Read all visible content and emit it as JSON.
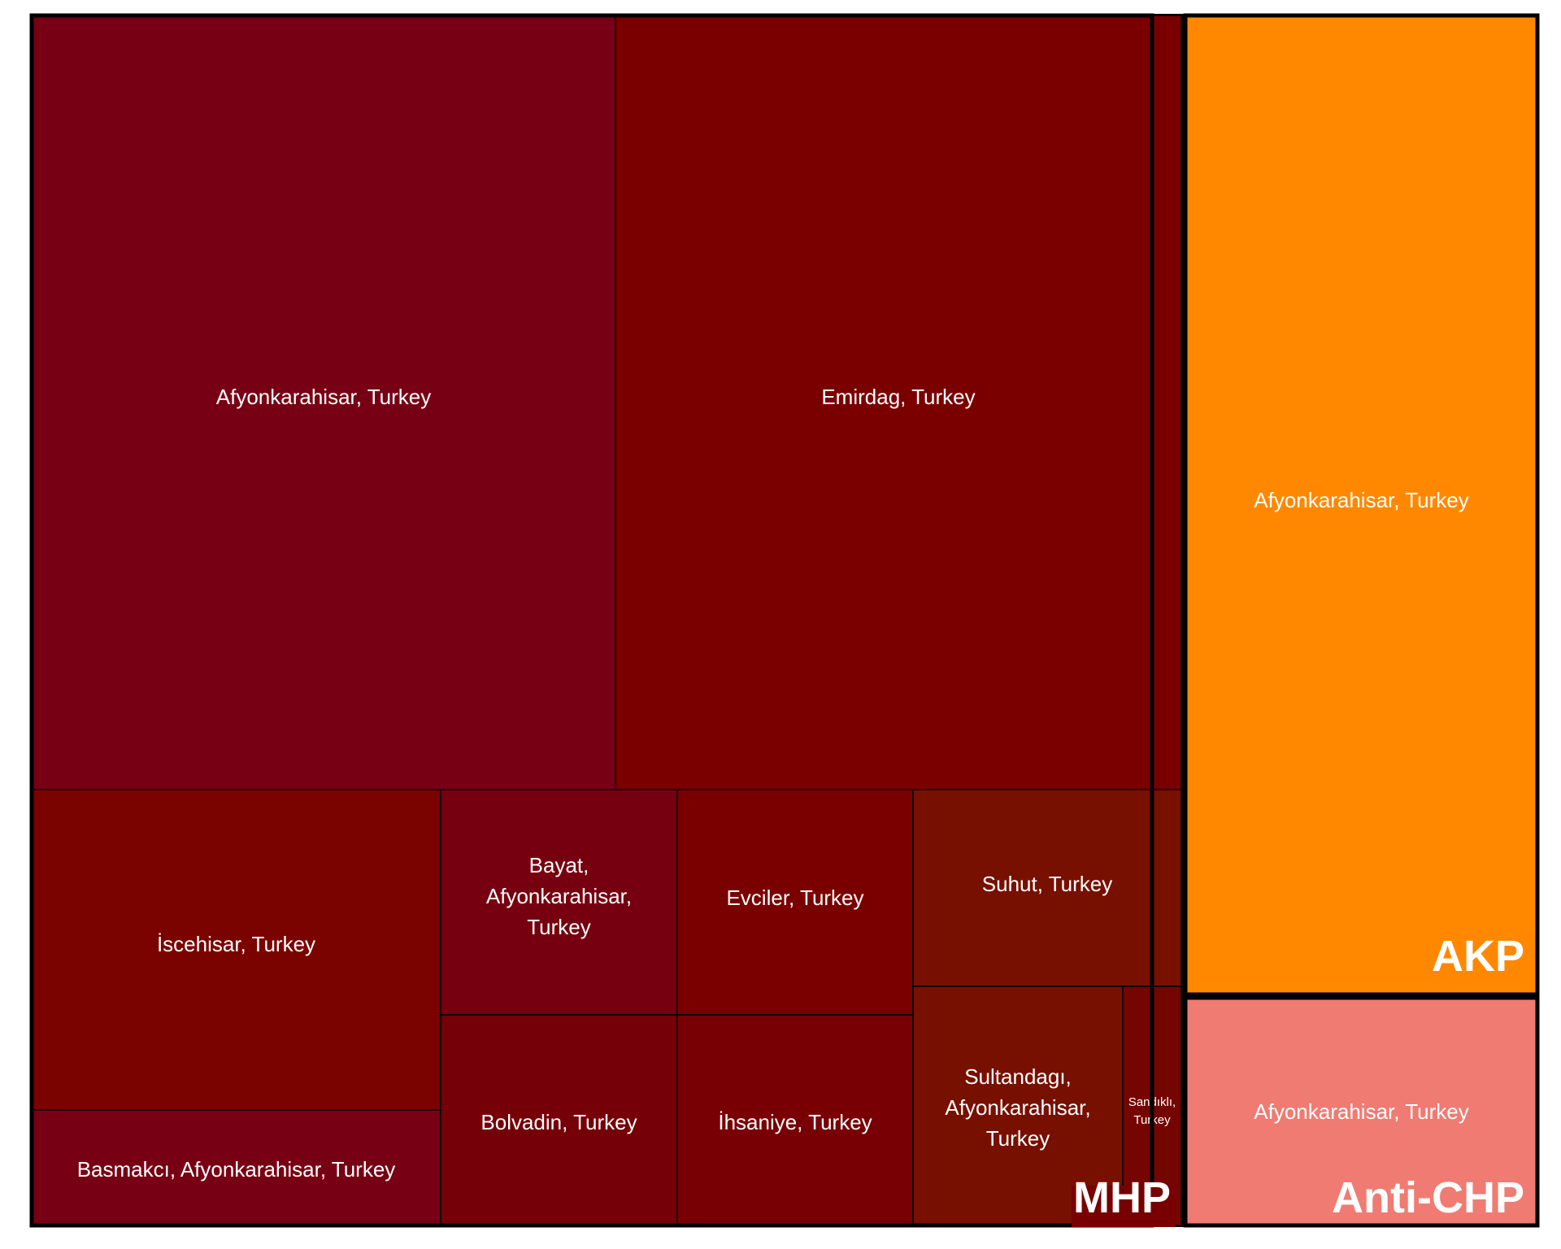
{
  "chart_data": {
    "type": "treemap",
    "groups": [
      {
        "name": "MHP",
        "cells": [
          {
            "label": "Afyonkarahisar, Turkey",
            "color": "#780015"
          },
          {
            "label": "Emirdag, Turkey",
            "color": "#7a0000"
          },
          {
            "label": "İscehisar, Turkey",
            "color": "#7a0300"
          },
          {
            "label": "Basmakcı, Afyonkarahisar, Turkey",
            "color": "#780015"
          },
          {
            "label": "Bayat, Afyonkarahisar, Turkey",
            "color": "#760010"
          },
          {
            "label": "Bolvadin, Turkey",
            "color": "#750008"
          },
          {
            "label": "Evciler, Turkey",
            "color": "#7a0000"
          },
          {
            "label": "İhsaniye, Turkey",
            "color": "#780005"
          },
          {
            "label": "Suhut, Turkey",
            "color": "#781000"
          },
          {
            "label": "Sultandagı, Afyonkarahisar, Turkey",
            "color": "#781000"
          },
          {
            "label": "Sandıklı, Turkey",
            "color": "#750500"
          }
        ]
      },
      {
        "name": "AKP",
        "cells": [
          {
            "label": "Afyonkarahisar, Turkey",
            "color": "#ff8800"
          }
        ]
      },
      {
        "name": "Anti-CHP",
        "cells": [
          {
            "label": "Afyonkarahisar, Turkey",
            "color": "#f07b72"
          }
        ]
      }
    ],
    "border_color": "#000000"
  }
}
